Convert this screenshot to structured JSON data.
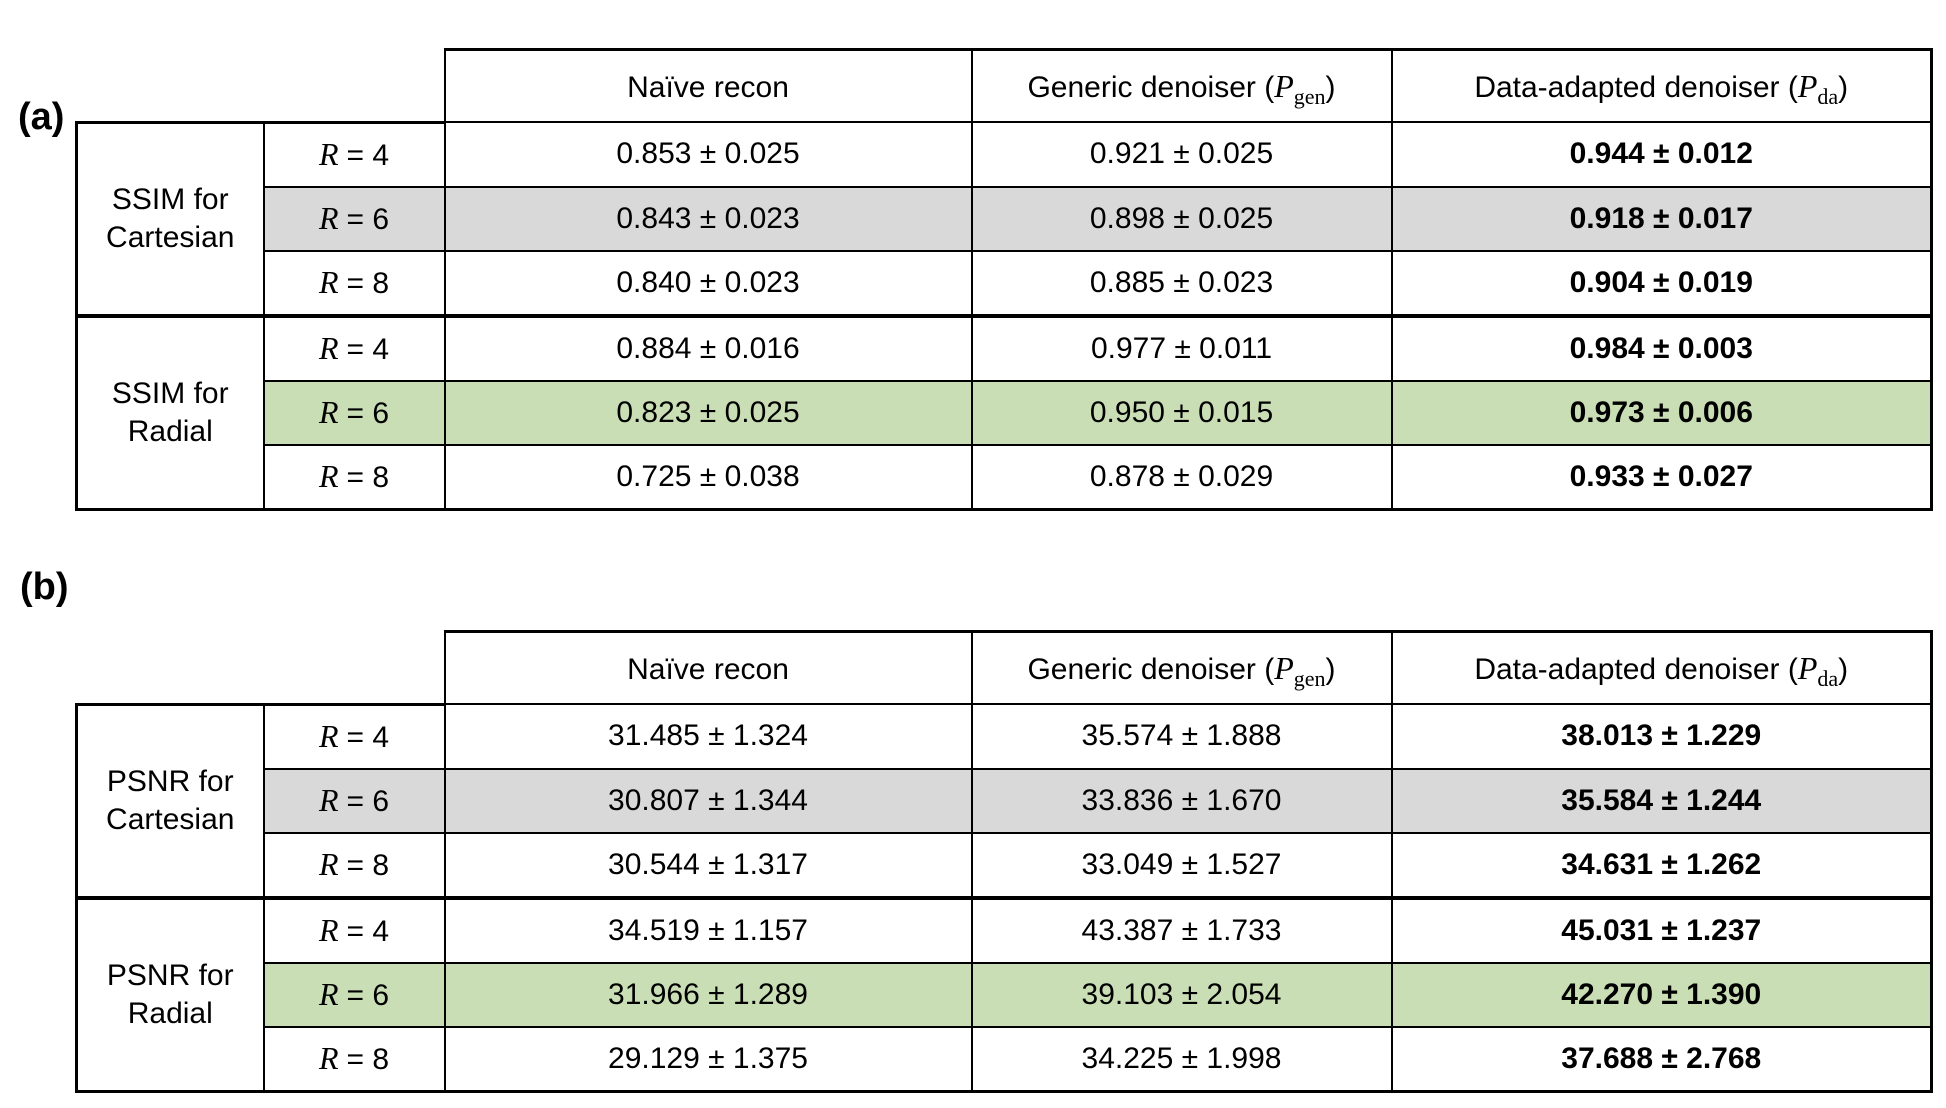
{
  "figure": {
    "panel_a_label": "(a)",
    "panel_b_label": "(b)"
  },
  "columns": [
    {
      "pre": "Naïve recon",
      "var": "",
      "sub": "",
      "post": ""
    },
    {
      "pre": "Generic denoiser (",
      "var": "P",
      "sub": "gen",
      "post": ")"
    },
    {
      "pre": "Data-adapted denoiser (",
      "var": "P",
      "sub": "da",
      "post": ")"
    }
  ],
  "style": {
    "highlight_gray": "#d9d9d9",
    "highlight_green": "#c9deb5",
    "border_color": "#000000"
  },
  "table_a": {
    "groups": [
      "SSIM for Cartesian",
      "SSIM for Radial"
    ],
    "rows": [
      {
        "r_var": "R",
        "r_eq": "= 4",
        "highlight": "none",
        "values": [
          "0.853 ± 0.025",
          "0.921 ± 0.025",
          "0.944 ± 0.012"
        ]
      },
      {
        "r_var": "R",
        "r_eq": "= 6",
        "highlight": "gray",
        "values": [
          "0.843 ± 0.023",
          "0.898 ± 0.025",
          "0.918 ± 0.017"
        ]
      },
      {
        "r_var": "R",
        "r_eq": "= 8",
        "highlight": "none",
        "values": [
          "0.840 ± 0.023",
          "0.885 ± 0.023",
          "0.904 ± 0.019"
        ]
      },
      {
        "r_var": "R",
        "r_eq": "= 4",
        "highlight": "none",
        "values": [
          "0.884 ± 0.016",
          "0.977 ± 0.011",
          "0.984 ± 0.003"
        ]
      },
      {
        "r_var": "R",
        "r_eq": "= 6",
        "highlight": "green",
        "values": [
          "0.823 ± 0.025",
          "0.950 ± 0.015",
          "0.973 ± 0.006"
        ]
      },
      {
        "r_var": "R",
        "r_eq": "= 8",
        "highlight": "none",
        "values": [
          "0.725 ± 0.038",
          "0.878 ± 0.029",
          "0.933 ± 0.027"
        ]
      }
    ]
  },
  "table_b": {
    "groups": [
      "PSNR for Cartesian",
      "PSNR for Radial"
    ],
    "rows": [
      {
        "r_var": "R",
        "r_eq": "= 4",
        "highlight": "none",
        "values": [
          "31.485 ± 1.324",
          "35.574 ± 1.888",
          "38.013 ± 1.229"
        ]
      },
      {
        "r_var": "R",
        "r_eq": "= 6",
        "highlight": "gray",
        "values": [
          "30.807 ± 1.344",
          "33.836 ± 1.670",
          "35.584 ± 1.244"
        ]
      },
      {
        "r_var": "R",
        "r_eq": "= 8",
        "highlight": "none",
        "values": [
          "30.544 ± 1.317",
          "33.049 ± 1.527",
          "34.631 ± 1.262"
        ]
      },
      {
        "r_var": "R",
        "r_eq": "= 4",
        "highlight": "none",
        "values": [
          "34.519 ± 1.157",
          "43.387 ± 1.733",
          "45.031 ± 1.237"
        ]
      },
      {
        "r_var": "R",
        "r_eq": "= 6",
        "highlight": "green",
        "values": [
          "31.966 ± 1.289",
          "39.103 ± 2.054",
          "42.270 ± 1.390"
        ]
      },
      {
        "r_var": "R",
        "r_eq": "= 8",
        "highlight": "none",
        "values": [
          "29.129 ± 1.375",
          "34.225 ± 1.998",
          "37.688 ± 2.768"
        ]
      }
    ]
  }
}
